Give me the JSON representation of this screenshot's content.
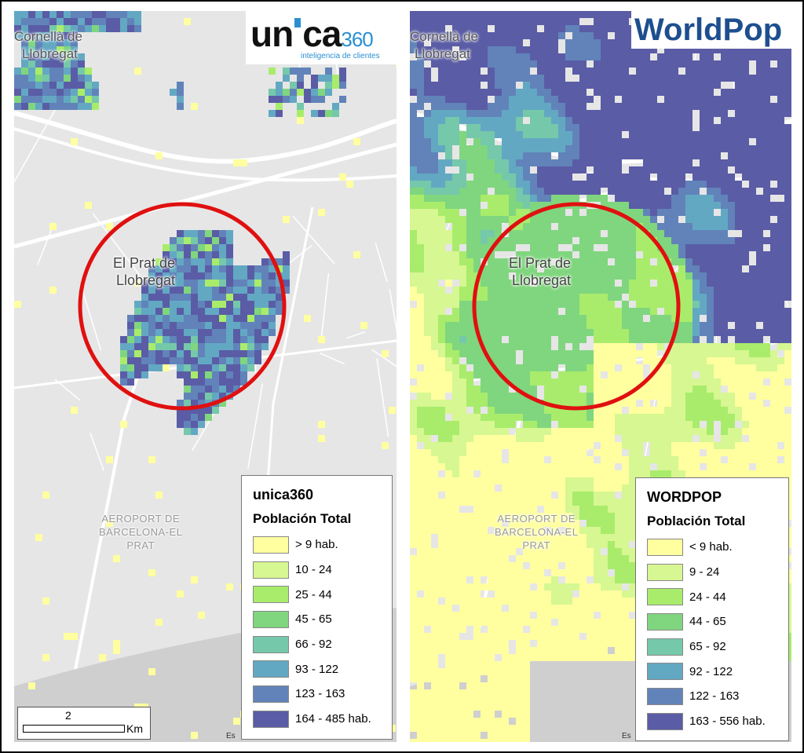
{
  "left": {
    "logo": {
      "parts": [
        "un",
        "ca",
        "360"
      ],
      "tagline": "inteligencia de clientes"
    },
    "places": {
      "cornella": [
        "Cornellà de",
        "Llobregat"
      ],
      "prat": [
        "El Prat de",
        "Llobregat"
      ],
      "airport": [
        "AEROPORT DE",
        "BARCELONA-EL",
        "PRAT"
      ]
    },
    "legend": {
      "title": "unica360",
      "subtitle": "Población Total",
      "items": [
        {
          "label": "> 9 hab.",
          "color": "#ffffa0"
        },
        {
          "label": "10 - 24",
          "color": "#d6f791"
        },
        {
          "label": "25 - 44",
          "color": "#a9ec6b"
        },
        {
          "label": "45 - 65",
          "color": "#80d67e"
        },
        {
          "label": "66 - 92",
          "color": "#75c8aa"
        },
        {
          "label": "93 - 122",
          "color": "#63a8c3"
        },
        {
          "label": "123 - 163",
          "color": "#6183b9"
        },
        {
          "label": "164 - 485 hab.",
          "color": "#5a5ca6"
        }
      ]
    },
    "scale_bar": {
      "value": "2",
      "unit": "Km"
    },
    "attribution": "Es"
  },
  "right": {
    "logo": {
      "parts": [
        "World",
        "P",
        "op"
      ]
    },
    "places": {
      "cornella": [
        "Cornellà de",
        "Llobregat"
      ],
      "prat": [
        "El Prat de",
        "Llobregat"
      ],
      "airport": [
        "AEROPORT DE",
        "BARCELONA-EL",
        "PRAT"
      ]
    },
    "legend": {
      "title": "WORDPOP",
      "subtitle": "Población Total",
      "items": [
        {
          "label": "< 9 hab.",
          "color": "#ffffa0"
        },
        {
          "label": "9 - 24",
          "color": "#d6f791"
        },
        {
          "label": "24 - 44",
          "color": "#a9ec6b"
        },
        {
          "label": "44 - 65",
          "color": "#80d67e"
        },
        {
          "label": "65 - 92",
          "color": "#75c8aa"
        },
        {
          "label": "92 - 122",
          "color": "#63a8c3"
        },
        {
          "label": "122 - 163",
          "color": "#6183b9"
        },
        {
          "label": "163 - 556 hab.",
          "color": "#5a5ca6"
        }
      ]
    },
    "attribution": "Es"
  }
}
